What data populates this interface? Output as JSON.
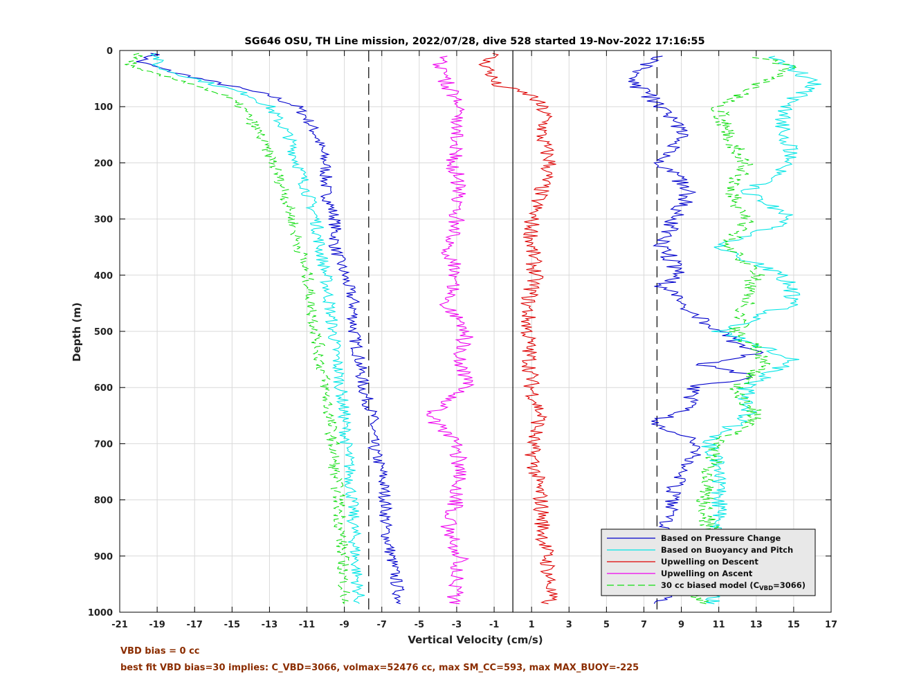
{
  "chart_data": {
    "type": "line",
    "title": "SG646 OSU, TH Line mission, 2022/07/28, dive 528 started 19-Nov-2022 17:16:55",
    "xlabel": "Vertical Velocity (cm/s)",
    "ylabel": "Depth (m)",
    "xlim": [
      -21,
      17
    ],
    "ylim": [
      0,
      1000
    ],
    "y_reversed": true,
    "grid": true,
    "legend_position": "bottom-right",
    "x_ticks": [
      "-21",
      "-19",
      "-17",
      "-15",
      "-13",
      "-11",
      "-9",
      "-7",
      "-5",
      "-3",
      "-1",
      "1",
      "3",
      "5",
      "7",
      "9",
      "11",
      "13",
      "15",
      "17"
    ],
    "y_ticks": [
      "0",
      "100",
      "200",
      "300",
      "400",
      "500",
      "600",
      "700",
      "800",
      "900",
      "1000"
    ],
    "reference_lines": [
      {
        "x": -7.7,
        "style": "dashed",
        "color": "#000000"
      },
      {
        "x": 0,
        "style": "solid",
        "color": "#000000"
      },
      {
        "x": 7.7,
        "style": "dashed",
        "color": "#000000"
      }
    ],
    "series": [
      {
        "name": "Based on Pressure Change",
        "color": "#0000cc",
        "style": "solid",
        "descent": {
          "depth": [
            5,
            20,
            40,
            60,
            80,
            100,
            120,
            150,
            200,
            250,
            300,
            350,
            400,
            450,
            500,
            550,
            600,
            650,
            700,
            750,
            800,
            850,
            900,
            950,
            985
          ],
          "v": [
            -19,
            -20,
            -18,
            -15.5,
            -13,
            -11.5,
            -11,
            -10.5,
            -10,
            -10,
            -9.5,
            -9.5,
            -9,
            -8.5,
            -8.5,
            -8.2,
            -8,
            -7.5,
            -7.5,
            -7,
            -6.8,
            -6.8,
            -6.5,
            -6.2,
            -6
          ]
        },
        "ascent": {
          "depth": [
            985,
            950,
            900,
            850,
            800,
            750,
            700,
            660,
            640,
            600,
            580,
            560,
            540,
            500,
            450,
            420,
            400,
            350,
            300,
            250,
            200,
            150,
            100,
            60,
            30,
            10
          ],
          "v": [
            8,
            8.5,
            8.5,
            8,
            8.5,
            9,
            10,
            7.5,
            9.5,
            9.5,
            13,
            10,
            13,
            11,
            9,
            8,
            9,
            8,
            8.5,
            9.5,
            8,
            9,
            8,
            6.5,
            7,
            8
          ]
        }
      },
      {
        "name": "Based on Buoyancy and Pitch",
        "color": "#00e5e5",
        "style": "solid",
        "descent": {
          "depth": [
            5,
            30,
            60,
            80,
            100,
            150,
            200,
            250,
            300,
            350,
            400,
            450,
            500,
            550,
            600,
            650,
            700,
            750,
            800,
            850,
            900,
            950,
            985
          ],
          "v": [
            -19,
            -19,
            -16,
            -14,
            -13,
            -12,
            -11.5,
            -11,
            -10.5,
            -10.3,
            -10,
            -9.8,
            -9.6,
            -9.4,
            -9.2,
            -9,
            -8.9,
            -8.7,
            -8.6,
            -8.5,
            -8.4,
            -8.3,
            -8.2
          ]
        },
        "ascent": {
          "depth": [
            985,
            950,
            900,
            850,
            800,
            750,
            700,
            650,
            600,
            550,
            500,
            450,
            400,
            350,
            300,
            250,
            200,
            150,
            100,
            60,
            30,
            10
          ],
          "v": [
            10.5,
            11,
            11.5,
            11,
            11,
            11,
            10.5,
            12.5,
            12.5,
            15,
            11,
            15,
            14.5,
            11,
            15,
            12.5,
            15,
            14.5,
            14.5,
            16,
            15,
            14
          ]
        }
      },
      {
        "name": "Upwelling on Descent",
        "color": "#dd0000",
        "style": "solid",
        "depth": [
          5,
          20,
          40,
          60,
          80,
          100,
          120,
          150,
          200,
          250,
          300,
          350,
          400,
          450,
          500,
          550,
          600,
          650,
          700,
          750,
          800,
          850,
          900,
          950,
          985
        ],
        "v": [
          -1,
          -1.5,
          -1.2,
          -1,
          1,
          1.5,
          1.8,
          1.5,
          2,
          1.5,
          1,
          1,
          1.2,
          0.8,
          0.8,
          0.9,
          1,
          1.5,
          1,
          1.2,
          1.5,
          1.6,
          1.8,
          2,
          1.9
        ]
      },
      {
        "name": "Upwelling on Ascent",
        "color": "#ee00ee",
        "style": "solid",
        "depth": [
          985,
          950,
          900,
          850,
          800,
          750,
          700,
          650,
          600,
          550,
          500,
          450,
          400,
          350,
          300,
          250,
          200,
          150,
          100,
          60,
          30,
          10
        ],
        "v": [
          -3.2,
          -3,
          -2.8,
          -3.5,
          -3,
          -2.8,
          -3,
          -4.5,
          -2.5,
          -2.8,
          -2.5,
          -3.5,
          -3,
          -3.5,
          -3,
          -2.8,
          -3.2,
          -3,
          -3,
          -3.5,
          -4,
          -3.5
        ]
      },
      {
        "name": "30 cc biased model (C_VBD=3066)",
        "color": "#11dd11",
        "style": "dashed",
        "descent": {
          "depth": [
            5,
            30,
            60,
            80,
            100,
            150,
            200,
            250,
            300,
            350,
            400,
            450,
            500,
            550,
            600,
            650,
            700,
            750,
            800,
            850,
            900,
            950,
            985
          ],
          "v": [
            -20,
            -20.5,
            -17,
            -15.5,
            -14.5,
            -13.5,
            -12.8,
            -12.2,
            -11.8,
            -11.4,
            -11,
            -10.8,
            -10.5,
            -10.3,
            -10,
            -9.8,
            -9.6,
            -9.5,
            -9.3,
            -9.2,
            -9.1,
            -9,
            -9
          ]
        },
        "ascent": {
          "depth": [
            985,
            950,
            900,
            850,
            800,
            750,
            700,
            650,
            600,
            550,
            500,
            450,
            400,
            350,
            300,
            250,
            200,
            150,
            100,
            60,
            30,
            10
          ],
          "v": [
            10,
            10,
            10.3,
            10.5,
            10.2,
            10.5,
            11,
            13,
            12,
            13.5,
            12,
            12.5,
            13,
            11.5,
            12.5,
            11.5,
            12.5,
            11.5,
            11,
            13,
            15,
            13
          ]
        }
      }
    ]
  },
  "legend": {
    "items": [
      {
        "label": "Based on Pressure Change",
        "color": "#0000cc",
        "dashed": false
      },
      {
        "label": "Based on Buoyancy and Pitch",
        "color": "#00e5e5",
        "dashed": false
      },
      {
        "label": "Upwelling on Descent",
        "color": "#dd0000",
        "dashed": false
      },
      {
        "label": "Upwelling on Ascent",
        "color": "#ee00ee",
        "dashed": false
      },
      {
        "label": "30 cc biased model (C",
        "sub": "VBD",
        "after": "=3066)",
        "color": "#11dd11",
        "dashed": true
      }
    ]
  },
  "footer": {
    "line1": "VBD bias = 0 cc",
    "line2": "best fit VBD bias=30 implies: C_VBD=3066, volmax=52476 cc, max SM_CC=593, max MAX_BUOY=-225"
  },
  "colors": {
    "footer_text": "#8b2d00",
    "legend_bg": "#e8e8e8",
    "grid": "#d9d9d9"
  }
}
